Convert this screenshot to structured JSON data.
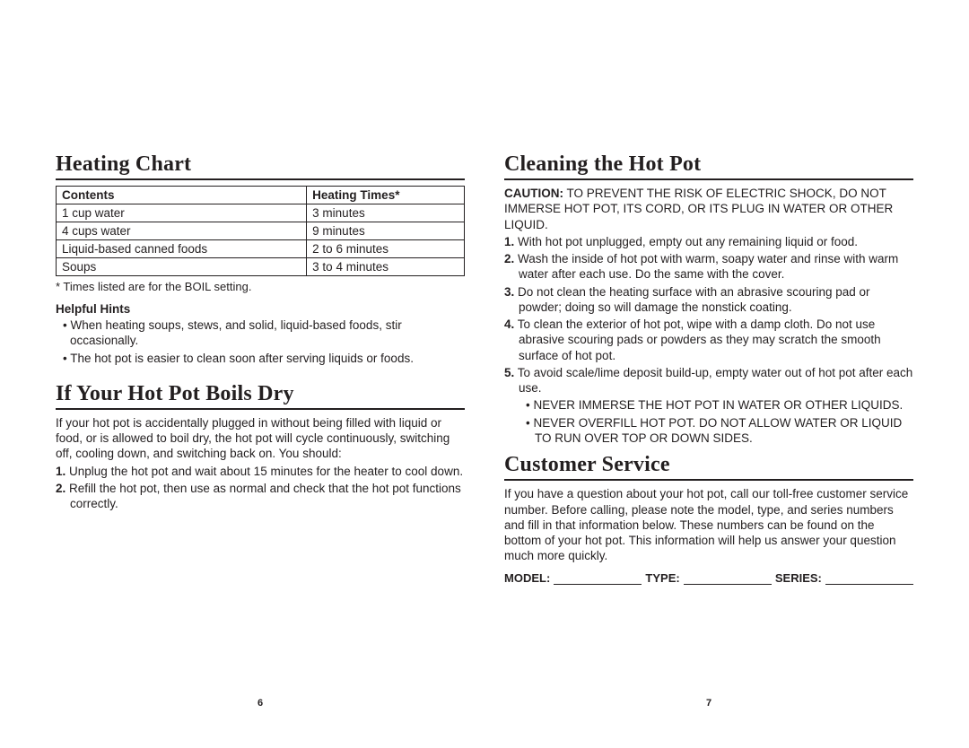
{
  "left": {
    "heating_chart": {
      "title": "Heating Chart",
      "headers": {
        "col1": "Contents",
        "col2": "Heating Times*"
      },
      "rows": [
        {
          "c1": "1 cup water",
          "c2": "3 minutes"
        },
        {
          "c1": "4 cups water",
          "c2": "9 minutes"
        },
        {
          "c1": "Liquid-based canned foods",
          "c2": "2 to 6 minutes"
        },
        {
          "c1": "Soups",
          "c2": "3 to 4 minutes"
        }
      ],
      "footnote": "* Times listed are for the BOIL setting.",
      "hints_title": "Helpful Hints",
      "hints": [
        "When heating soups, stews, and solid, liquid-based foods, stir occasionally.",
        "The hot pot is easier to clean soon after serving liquids or foods."
      ]
    },
    "boils_dry": {
      "title": "If Your Hot Pot Boils Dry",
      "intro": "If your hot pot is accidentally plugged in without being filled with liquid or food, or is allowed to boil dry, the hot pot will cycle continuously, switching off, cooling down, and switching back on. You should:",
      "steps": [
        "Unplug the hot pot and wait about 15 minutes for the heater to cool down.",
        "Refill the hot pot, then use as normal and check that the hot pot functions correctly."
      ]
    },
    "page_number": "6"
  },
  "right": {
    "cleaning": {
      "title": "Cleaning the Hot Pot",
      "caution_label": "CAUTION:",
      "caution_text": " TO PREVENT THE RISK OF ELECTRIC SHOCK, DO NOT IMMERSE HOT POT, ITS CORD, OR ITS PLUG IN WATER OR OTHER LIQUID.",
      "steps": [
        "With hot pot unplugged, empty out any remaining liquid or food.",
        "Wash the inside of hot pot with warm, soapy water and rinse with warm water after each use. Do the same with the cover.",
        "Do not clean the heating surface with an abrasive scouring pad or powder; doing so will damage the nonstick coating.",
        "To clean the exterior of hot pot, wipe with a damp cloth. Do not use abrasive scouring pads or powders as they may scratch the smooth surface of hot pot.",
        "To avoid scale/lime deposit build-up, empty water out of hot pot after each use."
      ],
      "sub_bullets": [
        "NEVER IMMERSE THE HOT POT IN WATER OR OTHER LIQUIDS.",
        "NEVER OVERFILL HOT POT. DO NOT ALLOW WATER OR LIQUID TO RUN OVER TOP OR DOWN SIDES."
      ]
    },
    "customer_service": {
      "title": "Customer Service",
      "body": "If you have a question about your hot pot, call our toll-free customer service number. Before calling, please note the model, type, and series numbers and fill in that information below. These numbers can be found on the bottom of your hot pot. This information will help us answer your question much more quickly.",
      "form": {
        "model": "MODEL:",
        "type": "TYPE:",
        "series": "SERIES:"
      }
    },
    "page_number": "7"
  }
}
